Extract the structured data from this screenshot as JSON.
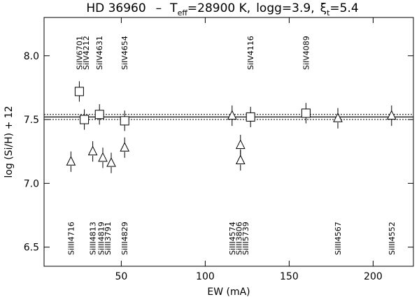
{
  "chart_data": {
    "type": "scatter",
    "title": {
      "star": "HD 36960",
      "teff_label": "T",
      "teff_sub": "eff",
      "teff_value": "=28900 K,",
      "logg": "logg=3.9,",
      "xi": "ξ",
      "xi_sub": "t",
      "xi_value": "=5.4"
    },
    "xlabel": "EW (mA)",
    "ylabel": "log (Si/H) + 12",
    "xlim": [
      4,
      224
    ],
    "ylim": [
      6.35,
      8.3
    ],
    "xticks": [
      50,
      100,
      150,
      200
    ],
    "yticks": [
      6.5,
      7.0,
      7.5,
      8.0
    ],
    "xtick_labels": [
      "50",
      "100",
      "150",
      "200"
    ],
    "ytick_labels": [
      "6.5",
      "7.0",
      "7.5",
      "8.0"
    ],
    "grid": false,
    "series": [
      {
        "marker": "square",
        "points": [
          {
            "x": 25,
            "y": 7.72,
            "err": 0.08
          },
          {
            "x": 28,
            "y": 7.5,
            "err": 0.08
          },
          {
            "x": 37,
            "y": 7.54,
            "err": 0.08
          },
          {
            "x": 52,
            "y": 7.49,
            "err": 0.08
          },
          {
            "x": 127,
            "y": 7.52,
            "err": 0.08
          },
          {
            "x": 160,
            "y": 7.55,
            "err": 0.08
          }
        ]
      },
      {
        "marker": "triangle",
        "points": [
          {
            "x": 20,
            "y": 7.17,
            "err": 0.08
          },
          {
            "x": 33,
            "y": 7.25,
            "err": 0.08
          },
          {
            "x": 39,
            "y": 7.2,
            "err": 0.08
          },
          {
            "x": 44,
            "y": 7.16,
            "err": 0.08
          },
          {
            "x": 52,
            "y": 7.28,
            "err": 0.08
          },
          {
            "x": 116,
            "y": 7.53,
            "err": 0.08
          },
          {
            "x": 121,
            "y": 7.3,
            "err": 0.08
          },
          {
            "x": 121,
            "y": 7.18,
            "err": 0.08
          },
          {
            "x": 179,
            "y": 7.51,
            "err": 0.08
          },
          {
            "x": 211,
            "y": 7.53,
            "err": 0.08
          }
        ]
      }
    ],
    "reference_lines": {
      "mean": 7.52,
      "upper": 7.54,
      "lower": 7.5
    },
    "top_labels": [
      {
        "x": 25,
        "text": "SiIV6701"
      },
      {
        "x": 29,
        "text": "SiIV4212"
      },
      {
        "x": 37,
        "text": "SiIV4631"
      },
      {
        "x": 52,
        "text": "SiIV4654"
      },
      {
        "x": 127,
        "text": "SiIV4116"
      },
      {
        "x": 160,
        "text": "SiIV4089"
      }
    ],
    "bottom_labels": [
      {
        "x": 20,
        "text": "SiIII4716"
      },
      {
        "x": 33,
        "text": "SiIII4813"
      },
      {
        "x": 38,
        "text": "SiIII4819"
      },
      {
        "x": 42,
        "text": "SiIII3791"
      },
      {
        "x": 52,
        "text": "SiIII4829"
      },
      {
        "x": 116,
        "text": "SiIII4574"
      },
      {
        "x": 120,
        "text": "SiIII3806"
      },
      {
        "x": 124,
        "text": "SiIII5739"
      },
      {
        "x": 179,
        "text": "SiIII4567"
      },
      {
        "x": 211,
        "text": "SiIII4552"
      }
    ]
  }
}
